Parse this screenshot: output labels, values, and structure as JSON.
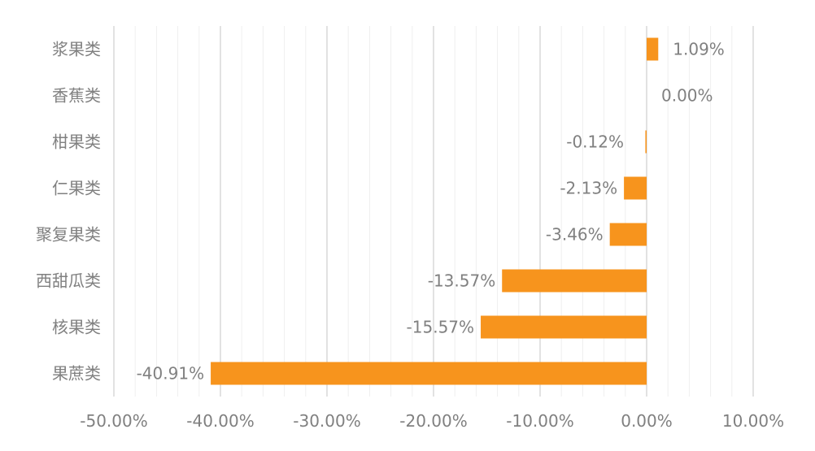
{
  "chart_data": {
    "type": "bar",
    "orientation": "horizontal",
    "title": "",
    "xlabel": "",
    "ylabel": "",
    "categories": [
      "浆果类",
      "香蕉类",
      "柑果类",
      "仁果类",
      "聚复果类",
      "西甜瓜类",
      "核果类",
      "果蔗类"
    ],
    "values": [
      1.09,
      0.0,
      -0.12,
      -2.13,
      -3.46,
      -13.57,
      -15.57,
      -40.91
    ],
    "value_labels": [
      "1.09%",
      "0.00%",
      "-0.12%",
      "-2.13%",
      "-3.46%",
      "-13.57%",
      "-15.57%",
      "-40.91%"
    ],
    "xlim": [
      -50,
      10
    ],
    "x_ticks": [
      -50,
      -40,
      -30,
      -20,
      -10,
      0,
      10
    ],
    "x_tick_labels": [
      "-50.00%",
      "-40.00%",
      "-30.00%",
      "-20.00%",
      "-10.00%",
      "0.00%",
      "10.00%"
    ],
    "grid": "vertical",
    "legend": "none",
    "colors": {
      "bar": "#F7941D",
      "grid_major": "#D9D9D9",
      "grid_minor": "#EFEFEF",
      "text": "#808080"
    }
  }
}
